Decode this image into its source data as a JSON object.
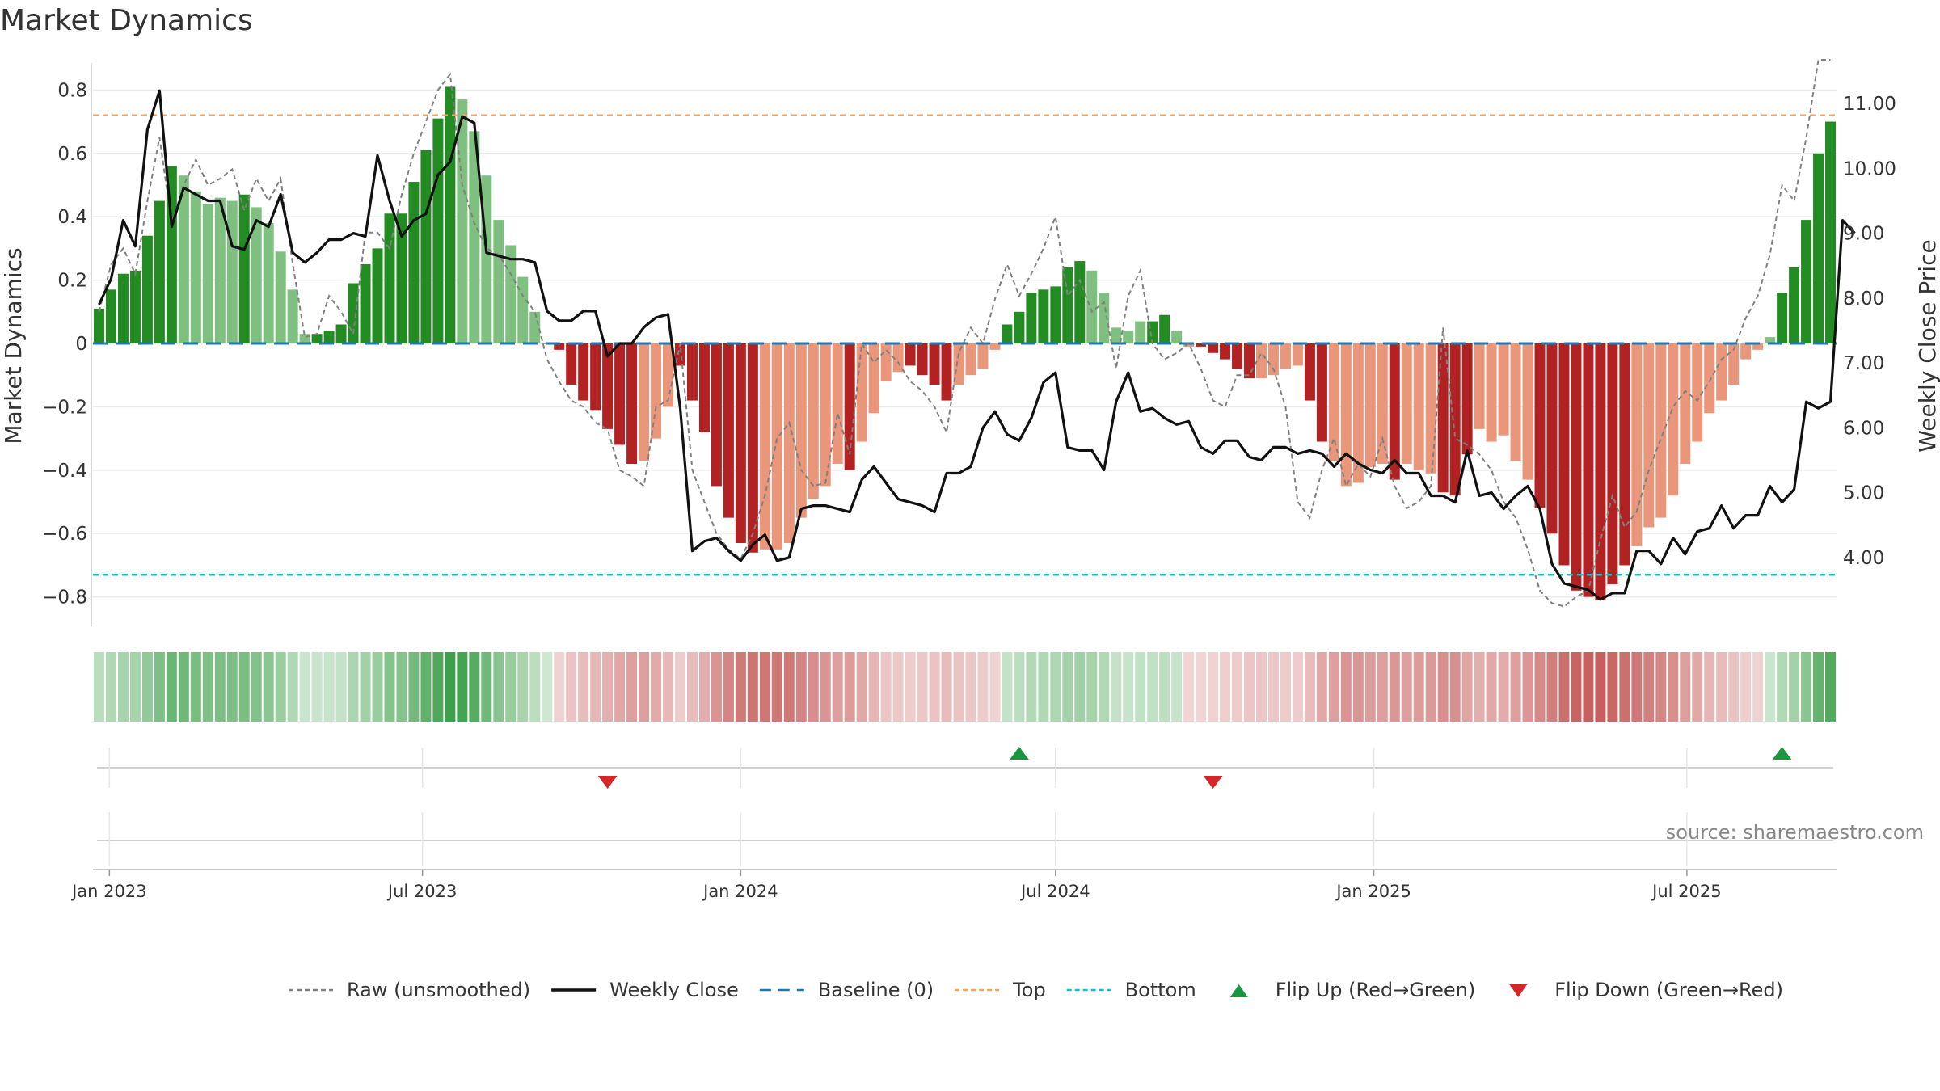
{
  "title": "Market Dynamics",
  "source_label": "source: sharemaestro.com",
  "chart_data": {
    "type": "bar",
    "y_left_label": "Market Dynamics",
    "y_right_label": "Weekly Close Price",
    "y_left_range": [
      -0.88,
      0.88
    ],
    "y_right_range": [
      3.0,
      11.6
    ],
    "y_left_ticks": [
      "0.8",
      "0.6",
      "0.4",
      "0.2",
      "0",
      "−0.2",
      "−0.4",
      "−0.6",
      "−0.8"
    ],
    "y_left_tick_values": [
      0.8,
      0.6,
      0.4,
      0.2,
      0,
      -0.2,
      -0.4,
      -0.6,
      -0.8
    ],
    "y_right_ticks": [
      "11.00",
      "10.00",
      "9.00",
      "8.00",
      "7.00",
      "6.00",
      "5.00",
      "4.00"
    ],
    "y_right_tick_values": [
      11,
      10,
      9,
      8,
      7,
      6,
      5,
      4
    ],
    "x_ticks": [
      {
        "label": "Jan 2023",
        "date": "2023-01-01"
      },
      {
        "label": "Jul 2023",
        "date": "2023-07-01"
      },
      {
        "label": "Jan 2024",
        "date": "2024-01-01"
      },
      {
        "label": "Jul 2024",
        "date": "2024-07-01"
      },
      {
        "label": "Jan 2025",
        "date": "2025-01-01"
      },
      {
        "label": "Jul 2025",
        "date": "2025-07-01"
      }
    ],
    "top_threshold": 0.72,
    "bottom_threshold": -0.73,
    "baseline": 0,
    "grid": true,
    "legend_position": "bottom",
    "colors": {
      "strong_green": "#228b22",
      "light_green": "#7fbf7f",
      "strong_red": "#b22222",
      "light_red": "#e9967a",
      "close": "#000000",
      "raw": "#808080",
      "baseline": "#1f77b4",
      "top": "#f4a460",
      "bottom": "#17becf",
      "flip_up": "#1a9641",
      "flip_down": "#d62728"
    },
    "series": [
      {
        "name": "Market Dynamics",
        "start_date": "2022-12-26",
        "values": [
          0.11,
          0.17,
          0.22,
          0.23,
          0.34,
          0.45,
          0.56,
          0.53,
          0.48,
          0.44,
          0.46,
          0.45,
          0.47,
          0.43,
          0.38,
          0.29,
          0.17,
          0.03,
          0.03,
          0.04,
          0.06,
          0.19,
          0.25,
          0.3,
          0.41,
          0.41,
          0.51,
          0.61,
          0.71,
          0.81,
          0.77,
          0.67,
          0.53,
          0.39,
          0.31,
          0.21,
          0.1,
          0.0,
          -0.02,
          -0.13,
          -0.18,
          -0.21,
          -0.27,
          -0.32,
          -0.38,
          -0.37,
          -0.3,
          -0.2,
          -0.07,
          -0.18,
          -0.28,
          -0.45,
          -0.55,
          -0.63,
          -0.66,
          -0.65,
          -0.65,
          -0.63,
          -0.55,
          -0.49,
          -0.45,
          -0.38,
          -0.4,
          -0.31,
          -0.22,
          -0.12,
          -0.09,
          -0.07,
          -0.1,
          -0.13,
          -0.18,
          -0.13,
          -0.1,
          -0.08,
          -0.02,
          0.06,
          0.1,
          0.16,
          0.17,
          0.18,
          0.24,
          0.26,
          0.23,
          0.16,
          0.05,
          0.04,
          0.07,
          0.07,
          0.09,
          0.04,
          -0.01,
          -0.01,
          -0.03,
          -0.05,
          -0.08,
          -0.11,
          -0.11,
          -0.1,
          -0.08,
          -0.07,
          -0.18,
          -0.31,
          -0.37,
          -0.45,
          -0.44,
          -0.39,
          -0.38,
          -0.43,
          -0.38,
          -0.4,
          -0.41,
          -0.47,
          -0.48,
          -0.35,
          -0.27,
          -0.31,
          -0.29,
          -0.37,
          -0.43,
          -0.52,
          -0.6,
          -0.7,
          -0.78,
          -0.8,
          -0.81,
          -0.76,
          -0.7,
          -0.64,
          -0.58,
          -0.55,
          -0.48,
          -0.38,
          -0.31,
          -0.22,
          -0.18,
          -0.13,
          -0.05,
          -0.02,
          0.02,
          0.16,
          0.24,
          0.39,
          0.6,
          0.7
        ],
        "highlight": [
          1,
          1,
          1,
          1,
          1,
          1,
          1,
          0,
          0,
          0,
          0,
          0,
          1,
          0,
          0,
          0,
          0,
          0,
          1,
          1,
          1,
          1,
          1,
          1,
          1,
          1,
          1,
          1,
          1,
          1,
          0,
          0,
          0,
          0,
          0,
          0,
          0,
          0,
          1,
          1,
          1,
          1,
          1,
          1,
          1,
          0,
          0,
          0,
          1,
          1,
          1,
          1,
          1,
          1,
          1,
          0,
          0,
          0,
          0,
          0,
          0,
          0,
          1,
          0,
          0,
          0,
          0,
          1,
          1,
          1,
          1,
          0,
          0,
          0,
          0,
          1,
          1,
          1,
          1,
          1,
          1,
          1,
          0,
          0,
          0,
          0,
          0,
          1,
          1,
          0,
          0,
          1,
          1,
          1,
          1,
          1,
          0,
          0,
          0,
          0,
          1,
          1,
          0,
          0,
          0,
          0,
          0,
          1,
          0,
          0,
          0,
          1,
          1,
          1,
          0,
          0,
          0,
          0,
          0,
          1,
          1,
          1,
          1,
          1,
          1,
          1,
          1,
          0,
          0,
          0,
          0,
          0,
          0,
          0,
          0,
          0,
          0,
          0,
          0,
          1,
          1,
          1,
          1,
          1,
          1
        ]
      },
      {
        "name": "Raw (unsmoothed)",
        "values": [
          0.1,
          0.25,
          0.3,
          0.22,
          0.45,
          0.65,
          0.38,
          0.5,
          0.58,
          0.5,
          0.52,
          0.55,
          0.42,
          0.52,
          0.45,
          0.52,
          0.25,
          0.02,
          0.03,
          0.15,
          0.1,
          0.03,
          0.35,
          0.35,
          0.3,
          0.47,
          0.6,
          0.7,
          0.8,
          0.85,
          0.5,
          0.38,
          0.3,
          0.28,
          0.22,
          0.15,
          0.1,
          -0.05,
          -0.12,
          -0.18,
          -0.2,
          -0.25,
          -0.27,
          -0.4,
          -0.42,
          -0.45,
          -0.2,
          -0.18,
          0.0,
          -0.4,
          -0.5,
          -0.6,
          -0.65,
          -0.68,
          -0.6,
          -0.48,
          -0.3,
          -0.25,
          -0.4,
          -0.45,
          -0.44,
          -0.22,
          -0.35,
          0.0,
          -0.06,
          -0.02,
          -0.06,
          -0.12,
          -0.15,
          -0.2,
          -0.28,
          -0.03,
          0.05,
          0.0,
          0.14,
          0.25,
          0.15,
          0.22,
          0.3,
          0.4,
          0.15,
          0.2,
          0.1,
          0.13,
          -0.08,
          0.15,
          0.23,
          0.0,
          -0.05,
          -0.03,
          0.0,
          -0.08,
          -0.18,
          -0.2,
          -0.1,
          -0.1,
          -0.03,
          -0.08,
          -0.2,
          -0.5,
          -0.55,
          -0.4,
          -0.3,
          -0.45,
          -0.38,
          -0.42,
          -0.3,
          -0.45,
          -0.52,
          -0.5,
          -0.45,
          0.05,
          -0.3,
          -0.32,
          -0.35,
          -0.4,
          -0.5,
          -0.55,
          -0.65,
          -0.78,
          -0.82,
          -0.83,
          -0.8,
          -0.78,
          -0.62,
          -0.48,
          -0.58,
          -0.53,
          -0.4,
          -0.3,
          -0.2,
          -0.15,
          -0.18,
          -0.12,
          -0.05,
          -0.02,
          0.08,
          0.15,
          0.28,
          0.5,
          0.45,
          0.65,
          0.9,
          0.92
        ]
      },
      {
        "name": "Weekly Close",
        "axis": "right",
        "values": [
          7.9,
          8.3,
          9.2,
          8.8,
          10.6,
          11.2,
          9.1,
          9.7,
          9.6,
          9.5,
          9.5,
          8.8,
          8.75,
          9.2,
          9.1,
          9.6,
          8.7,
          8.55,
          8.7,
          8.9,
          8.9,
          9.0,
          8.95,
          10.2,
          9.5,
          8.95,
          9.2,
          9.3,
          9.9,
          10.1,
          10.8,
          10.7,
          8.7,
          8.65,
          8.6,
          8.6,
          8.55,
          7.8,
          7.65,
          7.65,
          7.8,
          7.8,
          7.1,
          7.3,
          7.3,
          7.55,
          7.7,
          7.75,
          6.3,
          4.1,
          4.25,
          4.3,
          4.1,
          3.95,
          4.2,
          4.35,
          3.95,
          4.0,
          4.75,
          4.8,
          4.8,
          4.75,
          4.7,
          5.2,
          5.4,
          5.15,
          4.9,
          4.85,
          4.8,
          4.7,
          5.3,
          5.3,
          5.4,
          6.0,
          6.25,
          5.9,
          5.8,
          6.15,
          6.7,
          6.85,
          5.7,
          5.65,
          5.65,
          5.35,
          6.4,
          6.85,
          6.25,
          6.3,
          6.15,
          6.05,
          6.1,
          5.7,
          5.6,
          5.8,
          5.8,
          5.55,
          5.5,
          5.7,
          5.7,
          5.6,
          5.65,
          5.6,
          5.4,
          5.6,
          5.45,
          5.35,
          5.3,
          5.5,
          5.3,
          5.3,
          4.95,
          4.95,
          4.85,
          5.65,
          4.95,
          5.0,
          4.75,
          4.95,
          5.1,
          4.75,
          3.9,
          3.6,
          3.55,
          3.5,
          3.35,
          3.45,
          3.45,
          4.1,
          4.1,
          3.9,
          4.3,
          4.05,
          4.4,
          4.45,
          4.8,
          4.45,
          4.65,
          4.65,
          5.1,
          4.85,
          5.05,
          6.4,
          6.3,
          6.4,
          9.2,
          9.0
        ]
      }
    ],
    "flips": [
      {
        "type": "down",
        "date": "2023-10-16"
      },
      {
        "type": "up",
        "date": "2024-06-10"
      },
      {
        "type": "down",
        "date": "2024-09-30"
      },
      {
        "type": "up",
        "date": "2025-08-25"
      }
    ],
    "legend": [
      {
        "label": "Raw (unsmoothed)",
        "kind": "dashed",
        "color": "#808080"
      },
      {
        "label": "Weekly Close",
        "kind": "solid",
        "color": "#111111"
      },
      {
        "label": "Baseline (0)",
        "kind": "dashed-long",
        "color": "#1f77b4"
      },
      {
        "label": "Top",
        "kind": "dashed",
        "color": "#f4a460"
      },
      {
        "label": "Bottom",
        "kind": "dashed",
        "color": "#17becf"
      },
      {
        "label": "Flip Up (Red→Green)",
        "kind": "tri-up",
        "color": "#1a9641"
      },
      {
        "label": "Flip Down (Green→Red)",
        "kind": "tri-down",
        "color": "#d62728"
      }
    ]
  }
}
